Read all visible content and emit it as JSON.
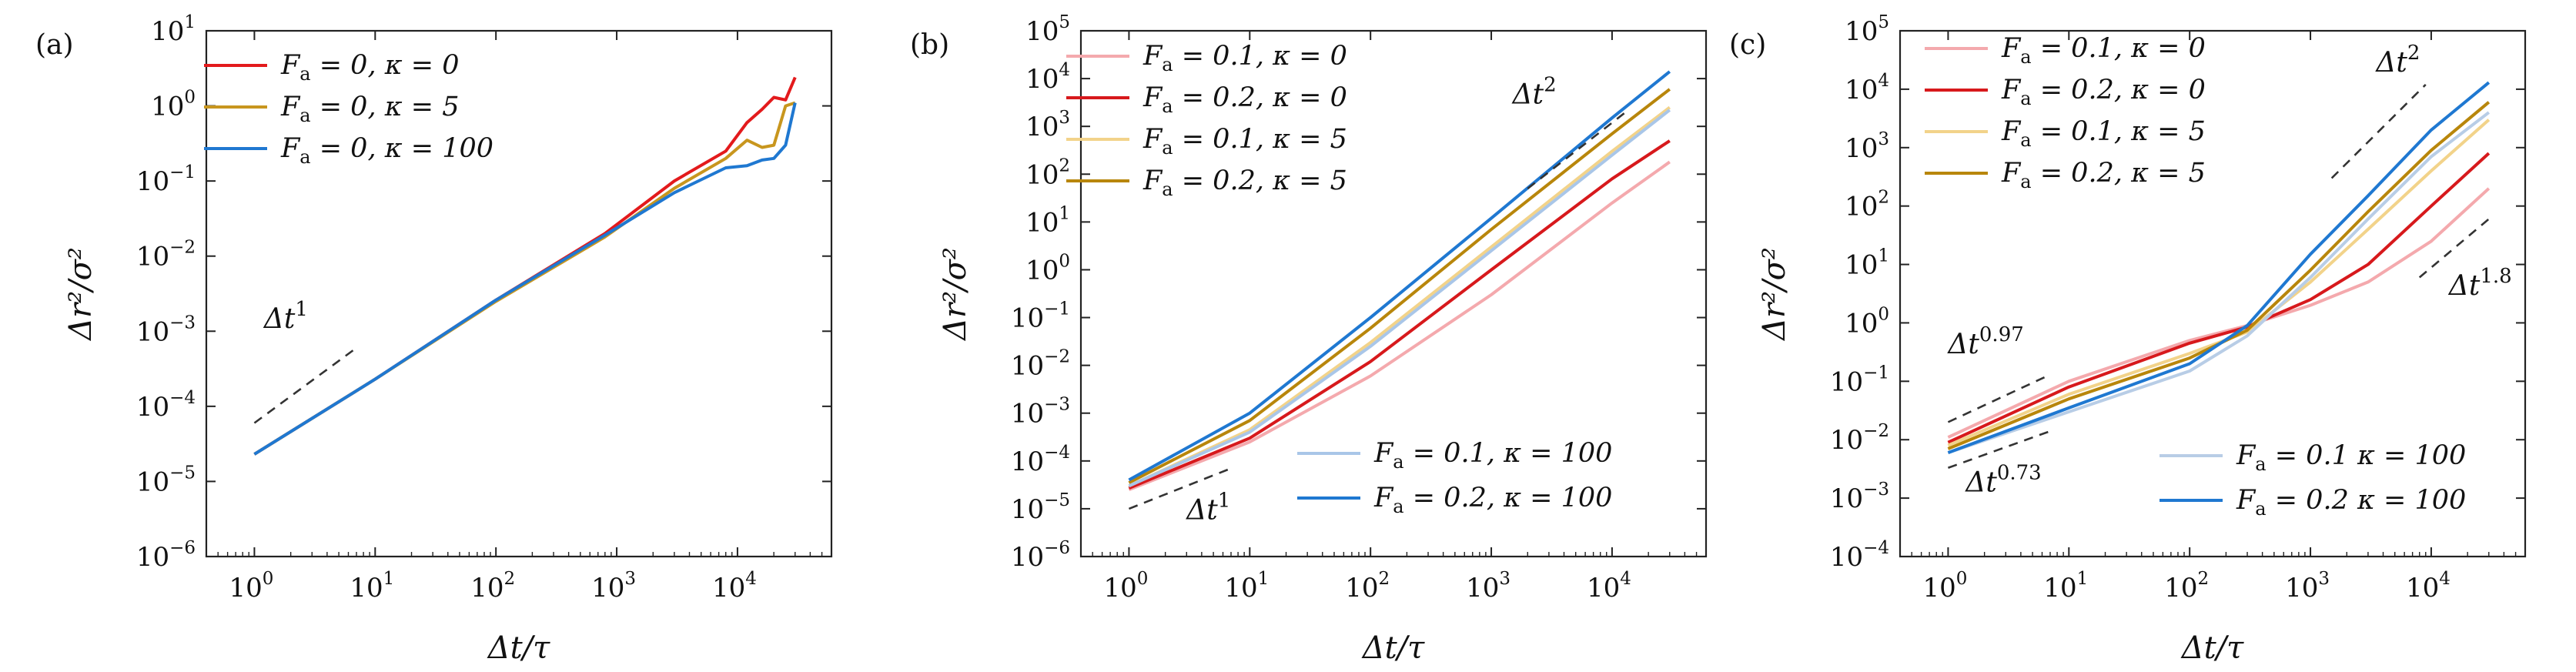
{
  "chart_data": [
    {
      "type": "line",
      "panel_label": "(a)",
      "xlabel": "Δt/τ",
      "ylabel": "Δr²/σ²",
      "xscale": "log",
      "yscale": "log",
      "xlim": [
        0.4,
        60000
      ],
      "ylim": [
        1e-06,
        10
      ],
      "xticks": [
        {
          "value": 1,
          "base": "10",
          "exp": "0"
        },
        {
          "value": 10,
          "base": "10",
          "exp": "1"
        },
        {
          "value": 100,
          "base": "10",
          "exp": "2"
        },
        {
          "value": 1000,
          "base": "10",
          "exp": "3"
        },
        {
          "value": 10000,
          "base": "10",
          "exp": "4"
        }
      ],
      "yticks": [
        {
          "value": 1e-06,
          "base": "10",
          "exp": "−6"
        },
        {
          "value": 1e-05,
          "base": "10",
          "exp": "−5"
        },
        {
          "value": 0.0001,
          "base": "10",
          "exp": "−4"
        },
        {
          "value": 0.001,
          "base": "10",
          "exp": "−3"
        },
        {
          "value": 0.01,
          "base": "10",
          "exp": "−2"
        },
        {
          "value": 0.1,
          "base": "10",
          "exp": "−1"
        },
        {
          "value": 1,
          "base": "10",
          "exp": "0"
        },
        {
          "value": 10,
          "base": "10",
          "exp": "1"
        }
      ],
      "grid": false,
      "legend_position": "top-left",
      "series": [
        {
          "name": "F_a = 0, κ = 0",
          "color": "#e31a1c",
          "x": [
            1,
            10,
            100,
            800,
            3000,
            8000,
            12000,
            16000,
            20000,
            25000,
            30000
          ],
          "y": [
            2.3e-05,
            0.00023,
            0.0026,
            0.02,
            0.1,
            0.25,
            0.6,
            0.9,
            1.3,
            1.2,
            2.4
          ]
        },
        {
          "name": "F_a = 0, κ = 5",
          "color": "#c8961e",
          "x": [
            1,
            10,
            100,
            800,
            3000,
            8000,
            12000,
            16000,
            20000,
            25000,
            30000
          ],
          "y": [
            2.3e-05,
            0.00023,
            0.0025,
            0.018,
            0.08,
            0.2,
            0.35,
            0.28,
            0.3,
            1.0,
            1.1
          ]
        },
        {
          "name": "F_a = 0, κ = 100",
          "color": "#1f78d1",
          "x": [
            1,
            10,
            100,
            800,
            3000,
            8000,
            12000,
            16000,
            20000,
            25000,
            30000
          ],
          "y": [
            2.3e-05,
            0.00023,
            0.0026,
            0.019,
            0.07,
            0.15,
            0.16,
            0.19,
            0.2,
            0.3,
            1.1
          ]
        }
      ],
      "guides": [
        {
          "label": "Δt",
          "exp": "1",
          "x": [
            1,
            7
          ],
          "y": [
            6e-05,
            0.0006
          ],
          "text_at": [
            1.2,
            0.0011
          ]
        }
      ]
    },
    {
      "type": "line",
      "panel_label": "(b)",
      "xlabel": "Δt/τ",
      "ylabel": "Δr²/σ²",
      "xscale": "log",
      "yscale": "log",
      "xlim": [
        0.4,
        60000
      ],
      "ylim": [
        1e-06,
        100000.0
      ],
      "xticks": [
        {
          "value": 1,
          "base": "10",
          "exp": "0"
        },
        {
          "value": 10,
          "base": "10",
          "exp": "1"
        },
        {
          "value": 100,
          "base": "10",
          "exp": "2"
        },
        {
          "value": 1000,
          "base": "10",
          "exp": "3"
        },
        {
          "value": 10000,
          "base": "10",
          "exp": "4"
        }
      ],
      "yticks": [
        {
          "value": 1e-06,
          "base": "10",
          "exp": "−6"
        },
        {
          "value": 1e-05,
          "base": "10",
          "exp": "−5"
        },
        {
          "value": 0.0001,
          "base": "10",
          "exp": "−4"
        },
        {
          "value": 0.001,
          "base": "10",
          "exp": "−3"
        },
        {
          "value": 0.01,
          "base": "10",
          "exp": "−2"
        },
        {
          "value": 0.1,
          "base": "10",
          "exp": "−1"
        },
        {
          "value": 1,
          "base": "10",
          "exp": "0"
        },
        {
          "value": 10,
          "base": "10",
          "exp": "1"
        },
        {
          "value": 100,
          "base": "10",
          "exp": "2"
        },
        {
          "value": 1000,
          "base": "10",
          "exp": "3"
        },
        {
          "value": 10000,
          "base": "10",
          "exp": "4"
        },
        {
          "value": 100000,
          "base": "10",
          "exp": "5"
        }
      ],
      "grid": false,
      "legend_position": "top-left and bottom-right",
      "series": [
        {
          "name": "F_a = 0.1, κ = 0",
          "color": "#f4a9ad",
          "x": [
            1,
            10,
            100,
            1000,
            10000,
            30000
          ],
          "y": [
            2.5e-05,
            0.00025,
            0.006,
            0.3,
            25,
            180
          ]
        },
        {
          "name": "F_a = 0.2, κ = 0",
          "color": "#d7191c",
          "x": [
            1,
            10,
            100,
            1000,
            10000,
            30000
          ],
          "y": [
            2.7e-05,
            0.0003,
            0.012,
            1.0,
            80,
            500
          ]
        },
        {
          "name": "F_a = 0.1, κ = 5",
          "color": "#f2d38a",
          "x": [
            1,
            10,
            100,
            1000,
            10000,
            30000
          ],
          "y": [
            3e-05,
            0.00045,
            0.03,
            3,
            300,
            2500
          ]
        },
        {
          "name": "F_a = 0.2, κ = 5",
          "color": "#b8860b",
          "x": [
            1,
            10,
            100,
            1000,
            10000,
            30000
          ],
          "y": [
            3.5e-05,
            0.0007,
            0.06,
            7,
            700,
            6000
          ]
        },
        {
          "name": "F_a = 0.1, κ = 100",
          "color": "#a9c6e8",
          "x": [
            1,
            10,
            100,
            1000,
            10000,
            30000
          ],
          "y": [
            3e-05,
            0.0004,
            0.025,
            2.5,
            250,
            2200
          ]
        },
        {
          "name": "F_a = 0.2, κ = 100",
          "color": "#1f78d1",
          "x": [
            1,
            10,
            100,
            1000,
            10000,
            30000
          ],
          "y": [
            4e-05,
            0.001,
            0.1,
            12,
            1500,
            14000
          ]
        }
      ],
      "guides": [
        {
          "label": "Δt",
          "exp": "1",
          "x": [
            1,
            7
          ],
          "y": [
            1e-05,
            7e-05
          ],
          "text_at": [
            3,
            6e-06
          ]
        },
        {
          "label": "Δt",
          "exp": "2",
          "x": [
            2000,
            13000
          ],
          "y": [
            50,
            2000
          ],
          "text_at": [
            1500,
            3000
          ]
        }
      ]
    },
    {
      "type": "line",
      "panel_label": "(c)",
      "xlabel": "Δt/τ",
      "ylabel": "Δr²/σ²",
      "xscale": "log",
      "yscale": "log",
      "xlim": [
        0.4,
        60000
      ],
      "ylim": [
        0.0001,
        100000.0
      ],
      "xticks": [
        {
          "value": 1,
          "base": "10",
          "exp": "0"
        },
        {
          "value": 10,
          "base": "10",
          "exp": "1"
        },
        {
          "value": 100,
          "base": "10",
          "exp": "2"
        },
        {
          "value": 1000,
          "base": "10",
          "exp": "3"
        },
        {
          "value": 10000,
          "base": "10",
          "exp": "4"
        }
      ],
      "yticks": [
        {
          "value": 0.0001,
          "base": "10",
          "exp": "−4"
        },
        {
          "value": 0.001,
          "base": "10",
          "exp": "−3"
        },
        {
          "value": 0.01,
          "base": "10",
          "exp": "−2"
        },
        {
          "value": 0.1,
          "base": "10",
          "exp": "−1"
        },
        {
          "value": 1,
          "base": "10",
          "exp": "0"
        },
        {
          "value": 10,
          "base": "10",
          "exp": "1"
        },
        {
          "value": 100,
          "base": "10",
          "exp": "2"
        },
        {
          "value": 1000,
          "base": "10",
          "exp": "3"
        },
        {
          "value": 10000,
          "base": "10",
          "exp": "4"
        },
        {
          "value": 100000,
          "base": "10",
          "exp": "5"
        }
      ],
      "grid": false,
      "legend_position": "top-left and bottom-right",
      "series": [
        {
          "name": "F_a = 0.1, κ = 0",
          "color": "#f4a9ad",
          "x": [
            1,
            10,
            100,
            300,
            1000,
            3000,
            10000,
            30000
          ],
          "y": [
            0.011,
            0.1,
            0.5,
            0.9,
            2,
            5,
            25,
            200
          ]
        },
        {
          "name": "F_a = 0.2, κ = 0",
          "color": "#d7191c",
          "x": [
            1,
            10,
            100,
            300,
            1000,
            3000,
            10000,
            30000
          ],
          "y": [
            0.009,
            0.08,
            0.45,
            0.85,
            2.5,
            10,
            100,
            800
          ]
        },
        {
          "name": "F_a = 0.1, κ = 5",
          "color": "#f2d38a",
          "x": [
            1,
            10,
            100,
            300,
            1000,
            3000,
            10000,
            30000
          ],
          "y": [
            0.008,
            0.06,
            0.3,
            0.7,
            5,
            40,
            400,
            3000
          ]
        },
        {
          "name": "F_a = 0.2, κ = 5",
          "color": "#b8860b",
          "x": [
            1,
            10,
            100,
            300,
            1000,
            3000,
            10000,
            30000
          ],
          "y": [
            0.007,
            0.05,
            0.25,
            0.75,
            8,
            80,
            900,
            6000
          ]
        },
        {
          "name": "F_a = 0.1 κ = 100",
          "color": "#b8cde6",
          "x": [
            1,
            10,
            100,
            300,
            1000,
            3000,
            10000,
            30000
          ],
          "y": [
            0.006,
            0.03,
            0.15,
            0.6,
            6,
            60,
            700,
            4000
          ]
        },
        {
          "name": "F_a = 0.2 κ = 100",
          "color": "#1f78d1",
          "x": [
            1,
            10,
            100,
            300,
            1000,
            3000,
            10000,
            30000
          ],
          "y": [
            0.006,
            0.035,
            0.2,
            0.9,
            15,
            150,
            2000,
            13000
          ]
        }
      ],
      "guides": [
        {
          "label": "Δt",
          "exp": "0.97",
          "x": [
            1,
            7
          ],
          "y": [
            0.02,
            0.13
          ],
          "text_at": [
            1,
            0.3
          ]
        },
        {
          "label": "Δt",
          "exp": "0.73",
          "x": [
            1,
            7
          ],
          "y": [
            0.0033,
            0.014
          ],
          "text_at": [
            1.4,
            0.0013
          ]
        },
        {
          "label": "Δt",
          "exp": "2",
          "x": [
            1500,
            9000
          ],
          "y": [
            300,
            12000
          ],
          "text_at": [
            3500,
            20000
          ]
        },
        {
          "label": "Δt",
          "exp": "1.8",
          "x": [
            8000,
            30000
          ],
          "y": [
            6,
            60
          ],
          "text_at": [
            14000,
            3
          ]
        }
      ]
    }
  ]
}
